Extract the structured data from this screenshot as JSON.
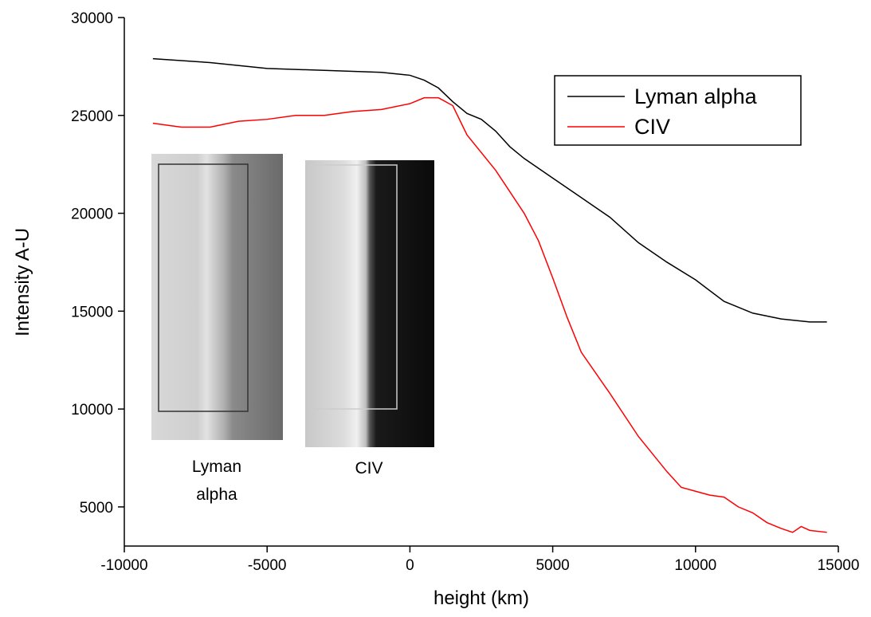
{
  "chart_data": {
    "type": "line",
    "xlabel": "height (km)",
    "ylabel": "Intensity  A-U",
    "xlim": [
      -10000,
      15000
    ],
    "ylim": [
      3000,
      30000
    ],
    "xticks": [
      -10000,
      -5000,
      0,
      5000,
      10000,
      15000
    ],
    "yticks": [
      5000,
      10000,
      15000,
      20000,
      25000,
      30000
    ],
    "grid": false,
    "legend": "upper right",
    "annotations": [
      "Lyman alpha",
      "CIV"
    ],
    "series": [
      {
        "name": "Lyman alpha",
        "color": "#000000",
        "x": [
          -9000,
          -7000,
          -5000,
          -3000,
          -1000,
          0,
          500,
          1000,
          1500,
          2000,
          2500,
          3000,
          3500,
          4000,
          5000,
          6000,
          7000,
          8000,
          9000,
          10000,
          11000,
          12000,
          13000,
          14000,
          14600
        ],
        "values": [
          27900,
          27700,
          27400,
          27300,
          27200,
          27050,
          26800,
          26400,
          25700,
          25100,
          24800,
          24200,
          23400,
          22800,
          21800,
          20800,
          19800,
          18500,
          17500,
          16600,
          15500,
          14900,
          14600,
          14450,
          14450
        ]
      },
      {
        "name": "CIV",
        "color": "#ff0000",
        "x": [
          -9000,
          -8000,
          -7000,
          -6000,
          -5000,
          -4000,
          -3000,
          -2000,
          -1000,
          0,
          500,
          1000,
          1500,
          2000,
          3000,
          4000,
          4500,
          5000,
          5500,
          6000,
          7000,
          8000,
          9000,
          9500,
          10000,
          10500,
          11000,
          11500,
          12000,
          12500,
          13000,
          13400,
          13700,
          14000,
          14600
        ],
        "values": [
          24600,
          24400,
          24400,
          24700,
          24800,
          25000,
          25000,
          25200,
          25300,
          25600,
          25900,
          25900,
          25500,
          24000,
          22200,
          20000,
          18600,
          16700,
          14700,
          12900,
          10800,
          8600,
          6800,
          6000,
          5800,
          5600,
          5500,
          5000,
          4700,
          4200,
          3900,
          3700,
          4000,
          3800,
          3700
        ]
      }
    ]
  }
}
